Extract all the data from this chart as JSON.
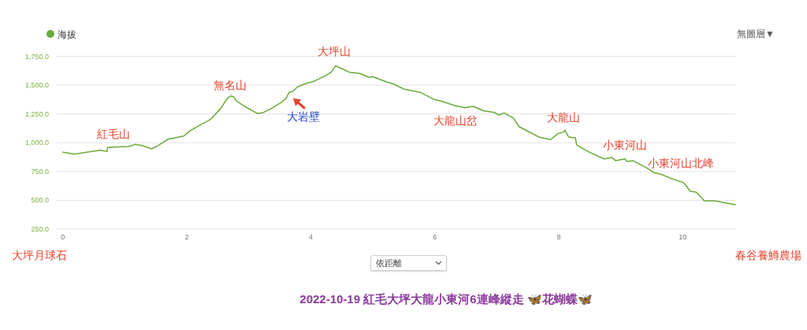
{
  "chart_data": {
    "type": "line",
    "title": "2022-10-19 紅毛大坪大龍小東河6連峰縱走 🦋花蝴蝶🦋",
    "x": [
      0,
      0.19,
      0.38,
      0.61,
      0.71,
      0.72,
      0.81,
      1.06,
      1.17,
      1.29,
      1.43,
      1.53,
      1.7,
      1.95,
      2.04,
      2.16,
      2.38,
      2.54,
      2.61,
      2.65,
      2.71,
      2.76,
      2.8,
      2.97,
      3.14,
      3.22,
      3.35,
      3.52,
      3.6,
      3.65,
      3.71,
      3.79,
      3.9,
      4.07,
      4.24,
      4.33,
      4.4,
      4.49,
      4.62,
      4.79,
      4.94,
      5.0,
      5.22,
      5.34,
      5.51,
      5.77,
      5.98,
      6.13,
      6.32,
      6.49,
      6.62,
      6.79,
      6.96,
      7.04,
      7.12,
      7.27,
      7.36,
      7.46,
      7.68,
      7.87,
      7.98,
      8.09,
      8.1,
      8.16,
      8.27,
      8.29,
      8.48,
      8.73,
      8.86,
      8.92,
      9.07,
      9.1,
      9.2,
      9.41,
      9.54,
      9.65,
      9.84,
      10.01,
      10.05,
      10.12,
      10.22,
      10.29,
      10.35,
      10.52,
      10.85
    ],
    "series": [
      {
        "name": "海拔",
        "color": "#6aaa3a",
        "values": [
          918,
          901,
          918,
          935,
          924,
          959,
          963,
          967,
          986,
          974,
          947,
          974,
          1031,
          1058,
          1100,
          1138,
          1202,
          1293,
          1350,
          1384,
          1407,
          1396,
          1362,
          1304,
          1254,
          1259,
          1293,
          1350,
          1384,
          1437,
          1446,
          1487,
          1509,
          1537,
          1583,
          1612,
          1669,
          1646,
          1612,
          1601,
          1567,
          1574,
          1528,
          1509,
          1464,
          1437,
          1378,
          1357,
          1323,
          1304,
          1316,
          1277,
          1263,
          1241,
          1259,
          1214,
          1140,
          1111,
          1050,
          1027,
          1077,
          1095,
          1111,
          1050,
          1043,
          981,
          922,
          860,
          872,
          844,
          860,
          837,
          844,
          785,
          740,
          727,
          685,
          655,
          633,
          580,
          571,
          530,
          496,
          496,
          462
        ]
      }
    ],
    "xlim": [
      -0.1,
      10.85
    ],
    "xticks": [
      0,
      2,
      4,
      6,
      8,
      10
    ],
    "ylim": [
      250,
      1750
    ],
    "yticks": [
      {
        "value": 250,
        "label": "250.0"
      },
      {
        "value": 500,
        "label": "500.0"
      },
      {
        "value": 750,
        "label": "750.0"
      },
      {
        "value": 1000,
        "label": "1,000.0"
      },
      {
        "value": 1250,
        "label": "1,250.0"
      },
      {
        "value": 1500,
        "label": "1,500.0"
      },
      {
        "value": 1750,
        "label": "1,750.0"
      }
    ],
    "grid": "y",
    "legend": "top left",
    "annotations": [
      {
        "text": "紅毛山",
        "x": 0.81,
        "y": 963
      },
      {
        "text": "無名山",
        "x": 2.71,
        "y": 1407
      },
      {
        "text": "大坪山",
        "x": 4.4,
        "y": 1669
      },
      {
        "text": "大岩壁",
        "x": 3.65,
        "y": 1400
      },
      {
        "text": "大龍山岔",
        "x": 6.43,
        "y": 1310
      },
      {
        "text": "大龍山",
        "x": 8.1,
        "y": 1111
      },
      {
        "text": "小東河山",
        "x": 9.07,
        "y": 860
      },
      {
        "text": "小東河山北峰",
        "x": 9.65,
        "y": 727
      },
      "大坪月球石",
      "春谷養鱒農場",
      "無圖層▼",
      "依距離"
    ]
  }
}
